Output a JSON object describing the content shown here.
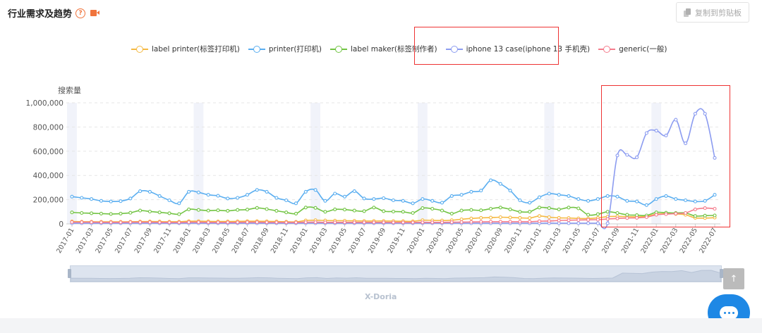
{
  "header": {
    "title": "行业需求及趋势",
    "help_icon": "question-circle-icon",
    "video_icon": "video-camera-icon",
    "help_glyph": "?",
    "copy_label": "复制到剪贴板"
  },
  "colors": {
    "label_printer": "#f5b942",
    "printer": "#5aaef0",
    "label_maker": "#72c443",
    "iphone_case": "#8c9cf0",
    "generic": "#f57c8c",
    "highlight": "#e33333"
  },
  "watermark": "X-Doria",
  "top_button_glyph": "↑",
  "chart_data": {
    "type": "line",
    "ylabel": "搜索量",
    "ylim": [
      0,
      1000000
    ],
    "yticks": [
      "1,000,000",
      "800,000",
      "600,000",
      "400,000",
      "200,000",
      "0"
    ],
    "ytick_values": [
      1000000,
      800000,
      600000,
      400000,
      200000,
      0
    ],
    "grid": true,
    "legend_position": "top-center",
    "x": [
      "2017-01",
      "2017-02",
      "2017-03",
      "2017-04",
      "2017-05",
      "2017-06",
      "2017-07",
      "2017-08",
      "2017-09",
      "2017-10",
      "2017-11",
      "2017-12",
      "2018-01",
      "2018-02",
      "2018-03",
      "2018-04",
      "2018-05",
      "2018-06",
      "2018-07",
      "2018-08",
      "2018-09",
      "2018-10",
      "2018-11",
      "2018-12",
      "2019-01",
      "2019-02",
      "2019-03",
      "2019-04",
      "2019-05",
      "2019-06",
      "2019-07",
      "2019-08",
      "2019-09",
      "2019-10",
      "2019-11",
      "2019-12",
      "2020-01",
      "2020-02",
      "2020-03",
      "2020-04",
      "2020-05",
      "2020-06",
      "2020-07",
      "2020-08",
      "2020-09",
      "2020-10",
      "2020-11",
      "2020-12",
      "2021-01",
      "2021-02",
      "2021-03",
      "2021-04",
      "2021-05",
      "2021-06",
      "2021-07",
      "2021-08",
      "2021-09",
      "2021-10",
      "2021-11",
      "2021-12",
      "2022-01",
      "2022-02",
      "2022-03",
      "2022-04",
      "2022-05",
      "2022-06",
      "2022-07"
    ],
    "xtick_labels": [
      "2017-01",
      "2017-03",
      "2017-05",
      "2017-07",
      "2017-09",
      "2017-11",
      "2018-01",
      "2018-03",
      "2018-05",
      "2018-07",
      "2018-09",
      "2018-11",
      "2019-01",
      "2019-03",
      "2019-05",
      "2019-07",
      "2019-09",
      "2019-11",
      "2020-01",
      "2020-03",
      "2020-05",
      "2020-07",
      "2020-09",
      "2020-11",
      "2021-01",
      "2021-03",
      "2021-05",
      "2021-07",
      "2021-09",
      "2021-11",
      "2022-01",
      "2022-03",
      "2022-05",
      "2022-07"
    ],
    "shaded_months": [
      "2017-01",
      "2018-02",
      "2019-02",
      "2020-01",
      "2021-02",
      "2022-01"
    ],
    "series": [
      {
        "name": "label printer(标签打印机)",
        "color_key": "label_printer",
        "values": [
          20000,
          18000,
          18000,
          17000,
          17000,
          17000,
          18000,
          19000,
          20000,
          19000,
          18000,
          18000,
          22000,
          22000,
          21000,
          20000,
          20000,
          21000,
          22000,
          22000,
          21000,
          20000,
          18000,
          17000,
          28000,
          30000,
          28000,
          27000,
          26000,
          25000,
          24000,
          24000,
          24000,
          23000,
          22000,
          21000,
          30000,
          29000,
          28000,
          30000,
          38000,
          45000,
          50000,
          52000,
          55000,
          53000,
          50000,
          48000,
          65000,
          55000,
          50000,
          48000,
          45000,
          44000,
          50000,
          60000,
          62000,
          60000,
          58000,
          62000,
          80000,
          85000,
          82000,
          75000,
          50000,
          48000,
          52000
        ]
      },
      {
        "name": "printer(打印机)",
        "color_key": "printer",
        "values": [
          225000,
          215000,
          205000,
          190000,
          185000,
          188000,
          210000,
          270000,
          265000,
          230000,
          195000,
          170000,
          265000,
          260000,
          240000,
          232000,
          210000,
          215000,
          240000,
          280000,
          265000,
          215000,
          195000,
          170000,
          265000,
          280000,
          190000,
          250000,
          225000,
          270000,
          210000,
          205000,
          212000,
          195000,
          190000,
          170000,
          205000,
          190000,
          175000,
          230000,
          240000,
          265000,
          275000,
          360000,
          330000,
          275000,
          195000,
          175000,
          220000,
          250000,
          240000,
          230000,
          205000,
          190000,
          205000,
          230000,
          225000,
          190000,
          185000,
          155000,
          205000,
          230000,
          205000,
          195000,
          185000,
          190000,
          240000
        ]
      },
      {
        "name": "label maker(标签制作者)",
        "color_key": "label_maker",
        "values": [
          95000,
          90000,
          88000,
          85000,
          82000,
          85000,
          92000,
          110000,
          102000,
          95000,
          88000,
          80000,
          120000,
          115000,
          110000,
          112000,
          108000,
          115000,
          118000,
          132000,
          122000,
          108000,
          95000,
          85000,
          135000,
          132000,
          100000,
          120000,
          118000,
          110000,
          105000,
          135000,
          105000,
          102000,
          100000,
          90000,
          130000,
          125000,
          110000,
          85000,
          110000,
          115000,
          112000,
          125000,
          135000,
          120000,
          100000,
          100000,
          135000,
          130000,
          120000,
          135000,
          128000,
          75000,
          80000,
          100000,
          90000,
          75000,
          72000,
          70000,
          95000,
          92000,
          90000,
          90000,
          65000,
          68000,
          70000
        ]
      },
      {
        "name": "iphone 13 case(iphone 13 手机壳)",
        "color_key": "iphone_case",
        "values": [
          5000,
          5000,
          5000,
          5000,
          5000,
          5000,
          5000,
          5000,
          5000,
          5000,
          5000,
          5000,
          5000,
          5000,
          5000,
          5000,
          5000,
          5000,
          5000,
          5000,
          5000,
          5000,
          5000,
          5000,
          5000,
          5000,
          5000,
          5000,
          5000,
          5000,
          5000,
          5000,
          5000,
          5000,
          5000,
          5000,
          5000,
          5000,
          5000,
          5000,
          5000,
          5000,
          5000,
          5000,
          5000,
          5000,
          5000,
          5000,
          5000,
          5000,
          5000,
          5000,
          5000,
          5000,
          5000,
          5000,
          565000,
          570000,
          550000,
          750000,
          770000,
          730000,
          860000,
          665000,
          910000,
          910000,
          545000
        ]
      },
      {
        "name": "generic(一般)",
        "color_key": "generic",
        "values": [
          15000,
          14000,
          14000,
          13000,
          13000,
          13000,
          14000,
          14000,
          14000,
          13000,
          12000,
          12000,
          14000,
          14000,
          13000,
          13000,
          13000,
          13000,
          14000,
          14000,
          13000,
          13000,
          12000,
          12000,
          14000,
          14000,
          13000,
          13000,
          13000,
          13000,
          13000,
          13000,
          13000,
          12000,
          12000,
          12000,
          13000,
          13000,
          13000,
          14000,
          15000,
          16000,
          17000,
          18000,
          18000,
          18000,
          18000,
          18000,
          22000,
          24000,
          28000,
          30000,
          32000,
          33000,
          35000,
          40000,
          45000,
          48000,
          50000,
          55000,
          75000,
          80000,
          85000,
          90000,
          120000,
          130000,
          125000
        ]
      }
    ]
  }
}
